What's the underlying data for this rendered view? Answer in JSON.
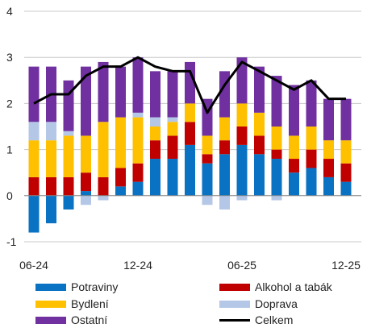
{
  "chart_data": {
    "type": "bar",
    "stacked": true,
    "title": "",
    "xlabel": "",
    "ylabel": "",
    "ylim": [
      -1,
      4
    ],
    "yticks": [
      "-1",
      "0",
      "1",
      "2",
      "3",
      "4"
    ],
    "xtick_labels": [
      "06-24",
      "12-24",
      "06-25",
      "12-25"
    ],
    "grid": true,
    "legend_position": "bottom",
    "categories": [
      "06-24",
      "07-24",
      "08-24",
      "09-24",
      "10-24",
      "11-24",
      "12-24",
      "01-25",
      "02-25",
      "03-25",
      "04-25",
      "05-25",
      "06-25",
      "07-25",
      "08-25",
      "09-25",
      "10-25",
      "11-25",
      "12-25"
    ],
    "series": [
      {
        "name": "Potraviny",
        "color": "#0a72c2",
        "values": [
          -0.8,
          -0.6,
          -0.3,
          0.1,
          0.0,
          0.2,
          0.3,
          0.8,
          0.8,
          1.1,
          0.7,
          0.9,
          1.1,
          0.9,
          0.8,
          0.5,
          0.6,
          0.4,
          0.3
        ]
      },
      {
        "name": "Alkohol a tabák",
        "color": "#c00000",
        "values": [
          0.4,
          0.4,
          0.4,
          0.4,
          0.4,
          0.4,
          0.4,
          0.4,
          0.5,
          0.5,
          0.2,
          0.3,
          0.4,
          0.4,
          0.2,
          0.3,
          0.4,
          0.4,
          0.4
        ]
      },
      {
        "name": "Bydlení",
        "color": "#ffc000",
        "values": [
          0.8,
          0.8,
          0.9,
          0.8,
          1.2,
          1.1,
          1.0,
          0.3,
          0.3,
          0.4,
          0.4,
          0.5,
          0.5,
          0.5,
          0.5,
          0.5,
          0.5,
          0.4,
          0.5
        ]
      },
      {
        "name": "Doprava",
        "color": "#b4c7e7",
        "values": [
          0.4,
          0.4,
          0.1,
          -0.2,
          -0.1,
          0.0,
          0.1,
          0.2,
          0.1,
          0.0,
          -0.2,
          -0.3,
          -0.1,
          0.0,
          -0.1,
          0.0,
          0.0,
          0.0,
          0.0
        ]
      },
      {
        "name": "Ostatní",
        "color": "#7030a0",
        "values": [
          1.2,
          1.2,
          1.1,
          1.5,
          1.3,
          1.1,
          1.2,
          1.0,
          1.0,
          0.9,
          0.8,
          1.0,
          1.0,
          1.0,
          1.1,
          1.1,
          1.0,
          0.9,
          0.9
        ]
      }
    ],
    "line": {
      "name": "Celkem",
      "color": "#000000",
      "values": [
        2.0,
        2.2,
        2.2,
        2.6,
        2.8,
        2.8,
        3.0,
        2.8,
        2.7,
        2.7,
        1.8,
        2.4,
        2.9,
        2.7,
        2.5,
        2.3,
        2.5,
        2.1,
        2.1
      ]
    }
  }
}
